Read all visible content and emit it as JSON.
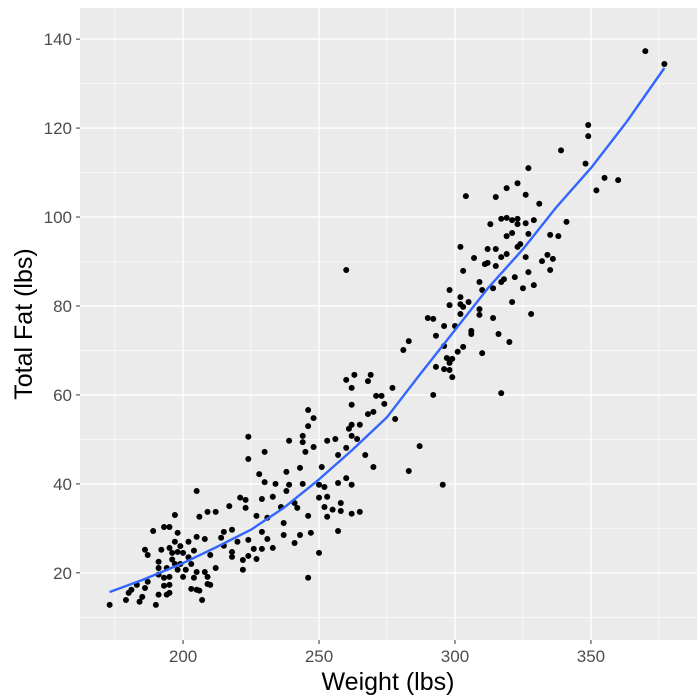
{
  "chart_data": {
    "type": "scatter",
    "title": "",
    "xlabel": "Weight (lbs)",
    "ylabel": "Total Fat (lbs)",
    "xlim": [
      162.1,
      389
    ],
    "ylim": [
      4.9,
      147
    ],
    "xticks": [
      200,
      250,
      300,
      350
    ],
    "yticks": [
      20,
      40,
      60,
      80,
      100,
      120,
      140
    ],
    "xminor": [
      175,
      225,
      275,
      325,
      375
    ],
    "yminor": [
      10,
      30,
      50,
      70,
      90,
      110,
      130
    ],
    "grid": true,
    "colors": {
      "panel": "#ebebeb",
      "grid": "#ffffff",
      "points": "#000000",
      "smooth": "#3366ff"
    },
    "series": [
      {
        "name": "observations",
        "kind": "points",
        "points": [
          [
            370,
            137.3
          ],
          [
            377,
            134.4
          ],
          [
            349,
            120.7
          ],
          [
            349,
            118.2
          ],
          [
            339,
            115
          ],
          [
            348,
            112
          ],
          [
            355,
            108.8
          ],
          [
            360,
            108.3
          ],
          [
            352,
            106
          ],
          [
            327,
            111
          ],
          [
            323,
            107.6
          ],
          [
            319,
            106.5
          ],
          [
            326,
            105
          ],
          [
            304,
            104.7
          ],
          [
            315,
            104.5
          ],
          [
            331,
            103
          ],
          [
            317,
            99.6
          ],
          [
            319,
            99.8
          ],
          [
            321,
            99.3
          ],
          [
            323,
            99.6
          ],
          [
            329,
            99.3
          ],
          [
            313,
            98.4
          ],
          [
            323,
            98.4
          ],
          [
            326,
            98.6
          ],
          [
            341,
            98.9
          ],
          [
            321,
            96.4
          ],
          [
            319,
            95.7
          ],
          [
            327,
            96.2
          ],
          [
            335,
            96
          ],
          [
            338,
            95.7
          ],
          [
            302,
            93.3
          ],
          [
            312,
            92.8
          ],
          [
            315,
            92.8
          ],
          [
            324,
            93.9
          ],
          [
            323,
            93.3
          ],
          [
            307,
            90.8
          ],
          [
            317,
            91
          ],
          [
            319,
            91.7
          ],
          [
            326,
            91
          ],
          [
            334,
            91.5
          ],
          [
            336,
            90.6
          ],
          [
            332,
            90.1
          ],
          [
            312,
            89.7
          ],
          [
            311,
            89.4
          ],
          [
            315,
            89
          ],
          [
            335,
            88.1
          ],
          [
            303,
            87.9
          ],
          [
            327,
            87.6
          ],
          [
            309,
            85.4
          ],
          [
            318,
            86
          ],
          [
            322,
            86.5
          ],
          [
            317,
            85.4
          ],
          [
            314,
            84
          ],
          [
            310,
            83.6
          ],
          [
            325,
            84
          ],
          [
            329,
            84.7
          ],
          [
            298,
            83.6
          ],
          [
            302,
            82
          ],
          [
            298,
            80.2
          ],
          [
            302,
            80.4
          ],
          [
            305,
            80.9
          ],
          [
            303,
            79.8
          ],
          [
            321,
            80.9
          ],
          [
            302,
            78.2
          ],
          [
            309,
            79.3
          ],
          [
            309,
            78
          ],
          [
            314,
            77.3
          ],
          [
            328,
            78.2
          ],
          [
            290,
            77.3
          ],
          [
            292,
            77.1
          ],
          [
            296,
            75.5
          ],
          [
            300,
            75.5
          ],
          [
            293,
            73.3
          ],
          [
            283,
            72.1
          ],
          [
            281,
            70.1
          ],
          [
            306,
            74.4
          ],
          [
            306,
            73.7
          ],
          [
            316,
            73.7
          ],
          [
            320,
            71.9
          ],
          [
            296,
            71
          ],
          [
            303,
            70.8
          ],
          [
            301,
            69.7
          ],
          [
            310,
            69.4
          ],
          [
            297,
            68.3
          ],
          [
            299,
            68.1
          ],
          [
            298,
            67.2
          ],
          [
            293,
            66.3
          ],
          [
            296,
            65.8
          ],
          [
            298,
            65.6
          ],
          [
            299,
            64
          ],
          [
            292,
            60
          ],
          [
            317,
            60.4
          ],
          [
            260,
            88.1
          ],
          [
            295.5,
            39.8
          ],
          [
            260,
            63.4
          ],
          [
            263,
            64.5
          ],
          [
            269,
            64.5
          ],
          [
            268,
            63.1
          ],
          [
            262,
            61.6
          ],
          [
            277,
            61.6
          ],
          [
            271,
            59.8
          ],
          [
            273,
            59.8
          ],
          [
            274,
            58
          ],
          [
            262,
            57.8
          ],
          [
            270,
            56.2
          ],
          [
            268,
            55.7
          ],
          [
            278,
            54.6
          ],
          [
            246,
            56.6
          ],
          [
            248,
            54.8
          ],
          [
            246,
            53
          ],
          [
            261,
            52.4
          ],
          [
            262,
            53.3
          ],
          [
            265,
            53.3
          ],
          [
            262,
            50.8
          ],
          [
            264,
            50.1
          ],
          [
            256,
            50.1
          ],
          [
            253,
            49.7
          ],
          [
            239,
            49.7
          ],
          [
            244,
            50.8
          ],
          [
            244,
            49.4
          ],
          [
            248,
            48.3
          ],
          [
            245,
            47.2
          ],
          [
            260,
            48.1
          ],
          [
            257,
            46.5
          ],
          [
            267,
            46.5
          ],
          [
            224,
            50.6
          ],
          [
            230,
            47.2
          ],
          [
            224,
            45.6
          ],
          [
            287,
            48.5
          ],
          [
            283,
            42.9
          ],
          [
            270,
            43.8
          ],
          [
            251,
            43.8
          ],
          [
            243,
            43.6
          ],
          [
            238,
            42.7
          ],
          [
            228,
            42.2
          ],
          [
            234,
            40
          ],
          [
            230,
            40.4
          ],
          [
            239,
            39.8
          ],
          [
            244,
            40
          ],
          [
            250,
            39.8
          ],
          [
            252,
            39.3
          ],
          [
            257,
            40.2
          ],
          [
            260,
            41.3
          ],
          [
            262,
            39.8
          ],
          [
            205,
            38.4
          ],
          [
            221,
            36.9
          ],
          [
            223,
            36.4
          ],
          [
            229,
            36.6
          ],
          [
            233,
            37.1
          ],
          [
            238,
            38.4
          ],
          [
            241,
            35.7
          ],
          [
            242,
            34.6
          ],
          [
            236,
            34.8
          ],
          [
            250,
            36.9
          ],
          [
            253,
            37.1
          ],
          [
            258,
            35.7
          ],
          [
            252,
            34.8
          ],
          [
            255,
            34.2
          ],
          [
            217,
            35
          ],
          [
            212,
            33.7
          ],
          [
            209,
            33.7
          ],
          [
            206,
            32.6
          ],
          [
            197,
            33
          ],
          [
            223,
            34.6
          ],
          [
            227,
            32.8
          ],
          [
            231,
            32.4
          ],
          [
            237,
            31.2
          ],
          [
            246,
            32.8
          ],
          [
            253,
            32.6
          ],
          [
            258,
            33.9
          ],
          [
            265,
            33.7
          ],
          [
            262,
            33.3
          ],
          [
            257,
            29.4
          ],
          [
            193,
            30.3
          ],
          [
            195,
            30.3
          ],
          [
            189,
            29.4
          ],
          [
            215,
            29.2
          ],
          [
            218,
            29.7
          ],
          [
            220,
            27
          ],
          [
            224,
            27.4
          ],
          [
            229,
            29.2
          ],
          [
            231,
            27.6
          ],
          [
            237,
            28.5
          ],
          [
            243,
            28.5
          ],
          [
            247,
            29
          ],
          [
            241,
            26.7
          ],
          [
            233,
            25.6
          ],
          [
            229,
            25.4
          ],
          [
            226,
            25.4
          ],
          [
            218,
            24.7
          ],
          [
            218,
            23.6
          ],
          [
            222,
            22.9
          ],
          [
            224,
            23.8
          ],
          [
            227,
            23.1
          ],
          [
            250,
            24.5
          ],
          [
            246,
            18.9
          ],
          [
            222,
            20.7
          ],
          [
            214,
            27.9
          ],
          [
            215,
            26.1
          ],
          [
            208,
            27.6
          ],
          [
            205,
            28.1
          ],
          [
            202,
            27
          ],
          [
            198,
            29
          ],
          [
            197,
            27
          ],
          [
            195,
            25.6
          ],
          [
            196,
            24.5
          ],
          [
            198,
            24.7
          ],
          [
            200,
            24.5
          ],
          [
            192,
            25.2
          ],
          [
            186,
            25.2
          ],
          [
            187,
            24
          ],
          [
            191,
            22.5
          ],
          [
            191,
            21.1
          ],
          [
            194,
            21.1
          ],
          [
            198,
            20.7
          ],
          [
            201,
            20.7
          ],
          [
            205,
            20.2
          ],
          [
            208,
            20.2
          ],
          [
            212,
            21.1
          ],
          [
            209,
            19.1
          ],
          [
            204,
            18.9
          ],
          [
            200,
            19.1
          ],
          [
            195,
            19.1
          ],
          [
            193,
            18.9
          ],
          [
            191,
            19.6
          ],
          [
            195,
            17.3
          ],
          [
            193,
            17.1
          ],
          [
            187,
            18
          ],
          [
            186,
            16.6
          ],
          [
            183,
            17.3
          ],
          [
            181,
            16.2
          ],
          [
            180,
            15.5
          ],
          [
            185,
            14.6
          ],
          [
            195,
            15.5
          ],
          [
            194,
            15.1
          ],
          [
            203,
            16.4
          ],
          [
            205,
            16.2
          ],
          [
            206,
            16
          ],
          [
            209,
            17.5
          ],
          [
            210,
            17.3
          ],
          [
            191,
            15.1
          ],
          [
            207,
            13.9
          ],
          [
            190,
            12.8
          ],
          [
            184,
            13.5
          ],
          [
            179,
            13.9
          ],
          [
            173,
            12.8
          ],
          [
            199,
            22
          ],
          [
            196,
            23
          ],
          [
            202,
            23.5
          ],
          [
            204,
            25
          ],
          [
            199,
            26
          ],
          [
            197,
            22
          ],
          [
            203,
            22
          ],
          [
            210,
            24
          ]
        ]
      },
      {
        "name": "smooth",
        "kind": "line",
        "points": [
          [
            173,
            15.7
          ],
          [
            185,
            18.4
          ],
          [
            200,
            22.2
          ],
          [
            212,
            25.7
          ],
          [
            225,
            29.7
          ],
          [
            237,
            34.6
          ],
          [
            250,
            41
          ],
          [
            262,
            47.5
          ],
          [
            275,
            55
          ],
          [
            287,
            64.5
          ],
          [
            300,
            74.6
          ],
          [
            312,
            83.9
          ],
          [
            325,
            92.8
          ],
          [
            337,
            102
          ],
          [
            350,
            111
          ],
          [
            363,
            121.3
          ],
          [
            377,
            133.5
          ]
        ]
      }
    ]
  }
}
